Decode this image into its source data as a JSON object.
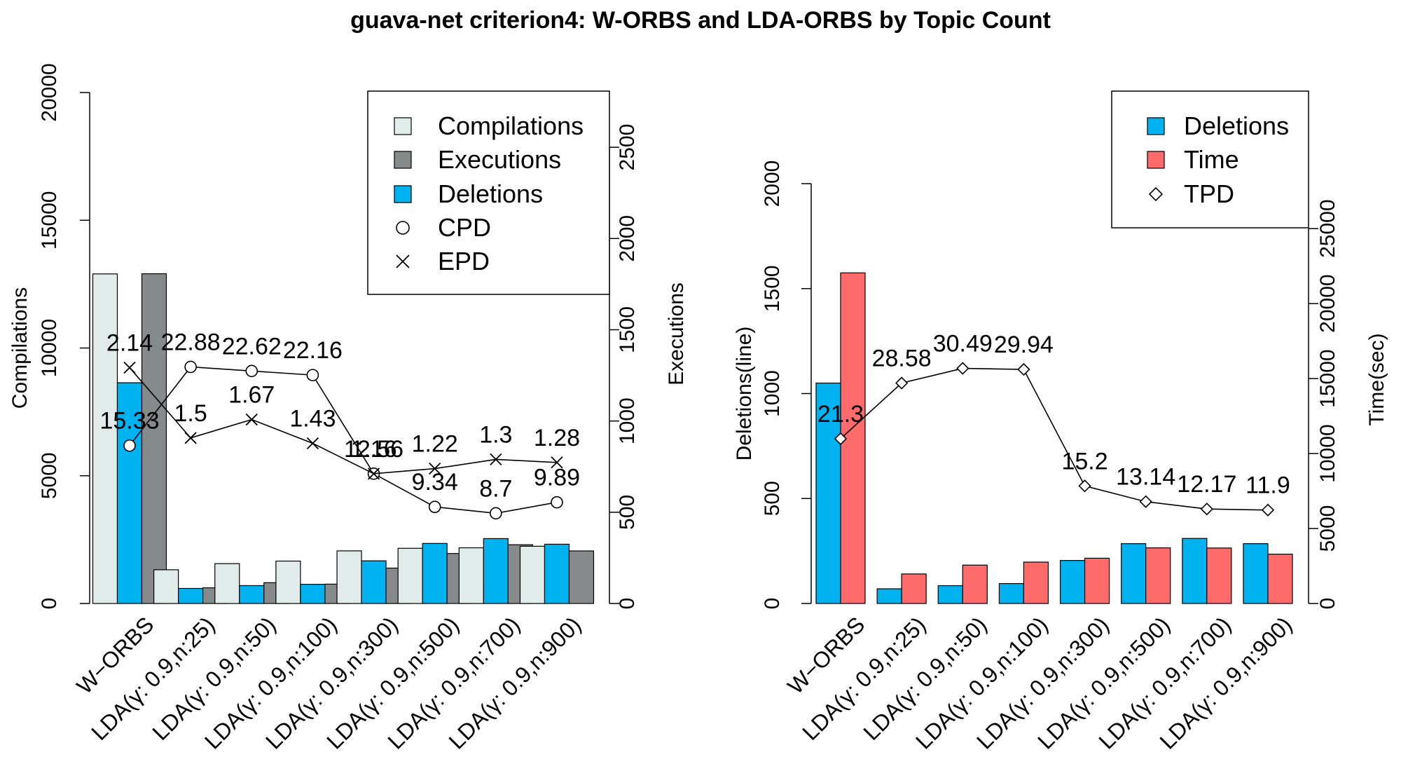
{
  "title": "guava-net criterion4: W-ORBS and LDA-ORBS by Topic Count",
  "chart_data": [
    {
      "type": "bar",
      "categories": [
        "W−ORBS",
        "LDA(γ: 0.9,n:25)",
        "LDA(γ: 0.9,n:50)",
        "LDA(γ: 0.9,n:100)",
        "LDA(γ: 0.9,n:300)",
        "LDA(γ: 0.9,n:500)",
        "LDA(γ: 0.9,n:700)",
        "LDA(γ: 0.9,n:900)"
      ],
      "ylabel": "Compilations",
      "ylim": [
        0,
        20000
      ],
      "yticks": [
        0,
        5000,
        10000,
        15000,
        20000
      ],
      "y2label": "Executions",
      "y2lim": [
        0,
        2800
      ],
      "y2ticks": [
        0,
        500,
        1000,
        1500,
        2000,
        2500
      ],
      "series": [
        {
          "name": "Compilations",
          "axis": "left",
          "kind": "bar",
          "color": "#e0ebea",
          "values": [
            12900,
            1320,
            1560,
            1660,
            2060,
            2160,
            2180,
            2240
          ]
        },
        {
          "name": "Executions",
          "axis": "right",
          "kind": "bar",
          "color": "#868a8a",
          "values": [
            1807,
            86,
            114,
            106,
            194,
            274,
            322,
            288
          ]
        },
        {
          "name": "Deletions",
          "axis": "left",
          "kind": "bar",
          "color": "#00b3f0",
          "values": [
            8640,
            590,
            700,
            750,
            1670,
            2350,
            2540,
            2320
          ]
        },
        {
          "name": "CPD",
          "axis": "left",
          "kind": "line",
          "marker": "circle",
          "values": [
            6180,
            9260,
            9100,
            8940,
            5080,
            3780,
            3530,
            3960
          ],
          "labels": [
            "15.33",
            "22.88",
            "22.62",
            "22.16",
            "12.56",
            "9.34",
            "8.7",
            "9.89"
          ]
        },
        {
          "name": "EPD",
          "axis": "left",
          "kind": "line",
          "marker": "cross",
          "values": [
            9230,
            6480,
            7200,
            6270,
            5080,
            5280,
            5640,
            5520
          ],
          "labels": [
            "2.14",
            "1.5",
            "1.67",
            "1.43",
            "1.16",
            "1.22",
            "1.3",
            "1.28"
          ]
        }
      ],
      "legend": {
        "position": "top-right",
        "entries": [
          "Compilations",
          "Executions",
          "Deletions",
          "CPD",
          "EPD"
        ]
      },
      "grid": false
    },
    {
      "type": "bar",
      "categories": [
        "W−ORBS",
        "LDA(γ: 0.9,n:25)",
        "LDA(γ: 0.9,n:50)",
        "LDA(γ: 0.9,n:100)",
        "LDA(γ: 0.9,n:300)",
        "LDA(γ: 0.9,n:500)",
        "LDA(γ: 0.9,n:700)",
        "LDA(γ: 0.9,n:900)"
      ],
      "ylabel": "Deletions(line)",
      "ylim": [
        0,
        2000
      ],
      "yticks": [
        0,
        500,
        1000,
        1500,
        2000
      ],
      "y2label": "Time(sec)",
      "y2lim": [
        0,
        28000
      ],
      "y2ticks": [
        0,
        5000,
        10000,
        15000,
        20000,
        25000
      ],
      "series": [
        {
          "name": "Deletions",
          "axis": "left",
          "kind": "bar",
          "color": "#00b3f0",
          "values": [
            1050,
            70,
            85,
            95,
            205,
            285,
            310,
            285
          ]
        },
        {
          "name": "Time",
          "axis": "right",
          "kind": "bar",
          "color": "#ff6a6a",
          "values": [
            22050,
            1970,
            2560,
            2760,
            3020,
            3710,
            3700,
            3290
          ]
        },
        {
          "name": "TPD",
          "axis": "left",
          "kind": "line",
          "marker": "diamond",
          "values": [
            785,
            1050,
            1120,
            1115,
            560,
            485,
            450,
            445
          ],
          "labels": [
            "21.3",
            "28.58",
            "30.49",
            "29.94",
            "15.2",
            "13.14",
            "12.17",
            "11.9"
          ]
        }
      ],
      "legend": {
        "position": "top-right",
        "entries": [
          "Deletions",
          "Time",
          "TPD"
        ]
      },
      "grid": false
    }
  ]
}
